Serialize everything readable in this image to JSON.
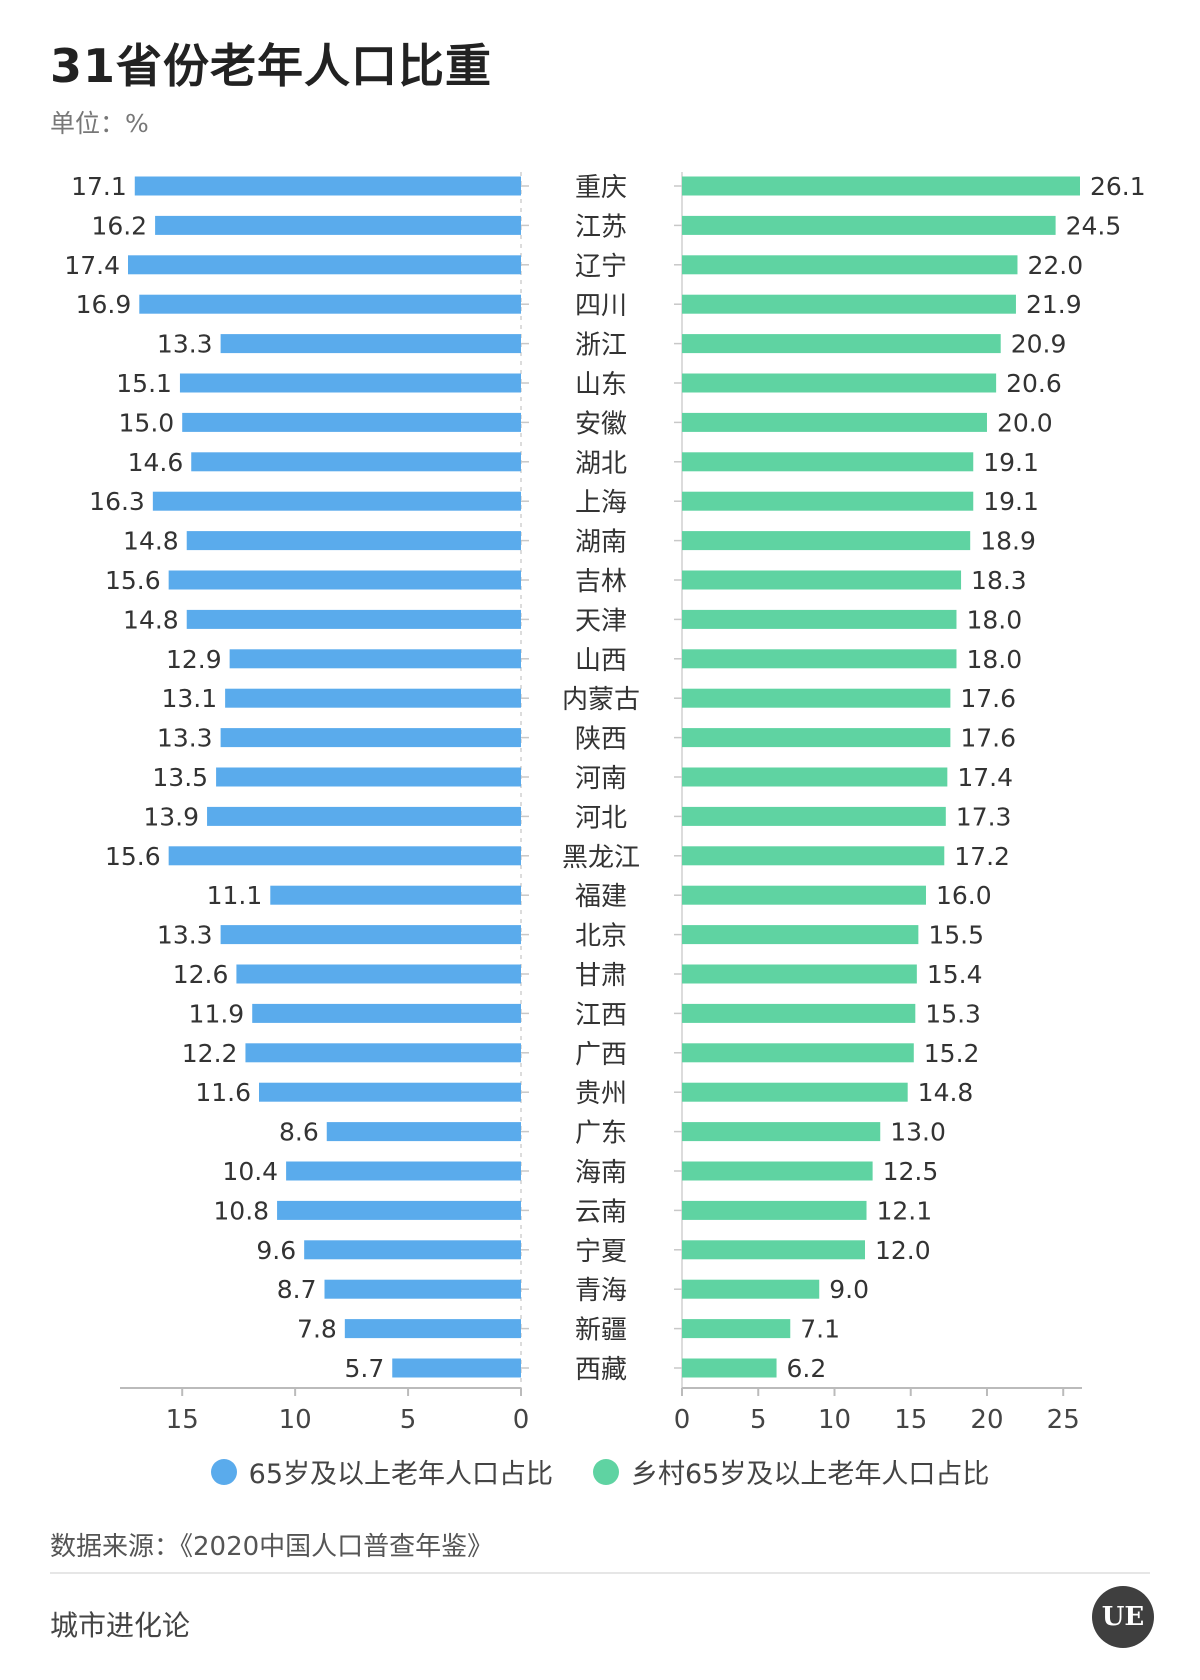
{
  "title": "31省份老年人口比重",
  "unit_label": "单位：%",
  "source": "数据来源：《2020中国人口普查年鉴》",
  "brand": "城市进化论",
  "logo_text": "UE",
  "colors": {
    "left": "#5aabec",
    "right": "#5fd3a2",
    "axis": "#bbbbbb"
  },
  "chart_data": {
    "type": "bar",
    "orientation": "horizontal-butterfly",
    "categories": [
      "重庆",
      "江苏",
      "辽宁",
      "四川",
      "浙江",
      "山东",
      "安徽",
      "湖北",
      "上海",
      "湖南",
      "吉林",
      "天津",
      "山西",
      "内蒙古",
      "陕西",
      "河南",
      "河北",
      "黑龙江",
      "福建",
      "北京",
      "甘肃",
      "江西",
      "广西",
      "贵州",
      "广东",
      "海南",
      "云南",
      "宁夏",
      "青海",
      "新疆",
      "西藏"
    ],
    "series": [
      {
        "name": "65岁及以上老年人口占比",
        "values": [
          17.1,
          16.2,
          17.4,
          16.9,
          13.3,
          15.1,
          15.0,
          14.6,
          16.3,
          14.8,
          15.6,
          14.8,
          12.9,
          13.1,
          13.3,
          13.5,
          13.9,
          15.6,
          11.1,
          13.3,
          12.6,
          11.9,
          12.2,
          11.6,
          8.6,
          10.4,
          10.8,
          9.6,
          8.7,
          7.8,
          5.7
        ],
        "labels": [
          "17.1",
          "16.2",
          "17.4",
          "16.9",
          "13.3",
          "15.1",
          "15.0",
          "14.6",
          "16.3",
          "14.8",
          "15.6",
          "14.8",
          "12.9",
          "13.1",
          "13.3",
          "13.5",
          "13.9",
          "15.6",
          "11.1",
          "13.3",
          "12.6",
          "11.9",
          "12.2",
          "11.6",
          "8.6",
          "10.4",
          "10.8",
          "9.6",
          "8.7",
          "7.8",
          "5.7"
        ],
        "xlim": [
          0,
          17.4
        ],
        "ticks": [
          15,
          10,
          5,
          0
        ]
      },
      {
        "name": "乡村65岁及以上老年人口占比",
        "values": [
          26.1,
          24.5,
          22.0,
          21.9,
          20.9,
          20.6,
          20.0,
          19.1,
          19.1,
          18.9,
          18.3,
          18.0,
          18.0,
          17.6,
          17.6,
          17.4,
          17.3,
          17.2,
          16.0,
          15.5,
          15.4,
          15.3,
          15.2,
          14.8,
          13.0,
          12.5,
          12.1,
          12.0,
          9.0,
          7.1,
          6.2
        ],
        "labels": [
          "26.1",
          "24.5",
          "22.0",
          "21.9",
          "20.9",
          "20.6",
          "20.0",
          "19.1",
          "19.1",
          "18.9",
          "18.3",
          "18.0",
          "18.0",
          "17.6",
          "17.6",
          "17.4",
          "17.3",
          "17.2",
          "16.0",
          "15.5",
          "15.4",
          "15.3",
          "15.2",
          "14.8",
          "13.0",
          "12.5",
          "12.1",
          "12.0",
          "9.0",
          "7.1",
          "6.2"
        ],
        "xlim": [
          0,
          26.1
        ],
        "ticks": [
          0,
          5,
          10,
          15,
          20,
          25
        ]
      }
    ]
  }
}
